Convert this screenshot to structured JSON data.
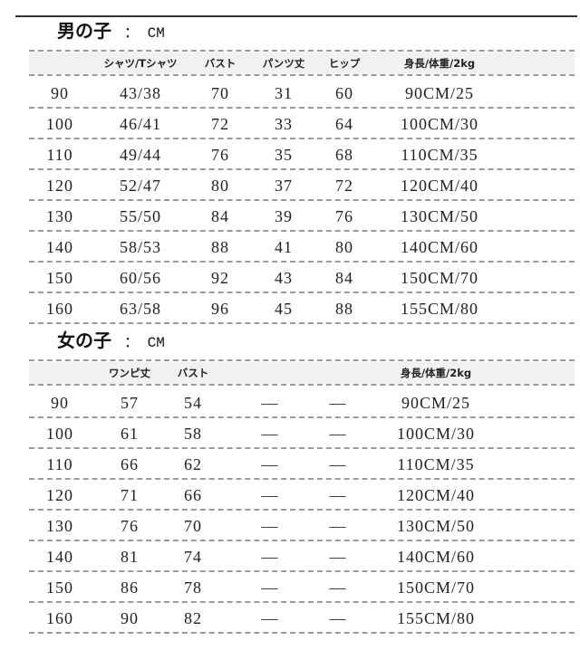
{
  "boys": {
    "title": "男の子",
    "unit": "：  CM",
    "headers": [
      "",
      "シャツ/Tシャツ",
      "バスト",
      "パンツ丈",
      "ヒップ",
      "身長/体重/2kg"
    ],
    "rows": [
      [
        "90",
        "43/38",
        "70",
        "31",
        "60",
        "90CM/25"
      ],
      [
        "100",
        "46/41",
        "72",
        "33",
        "64",
        "100CM/30"
      ],
      [
        "110",
        "49/44",
        "76",
        "35",
        "68",
        "110CM/35"
      ],
      [
        "120",
        "52/47",
        "80",
        "37",
        "72",
        "120CM/40"
      ],
      [
        "130",
        "55/50",
        "84",
        "39",
        "76",
        "130CM/50"
      ],
      [
        "140",
        "58/53",
        "88",
        "41",
        "80",
        "140CM/60"
      ],
      [
        "150",
        "60/56",
        "92",
        "43",
        "84",
        "150CM/70"
      ],
      [
        "160",
        "63/58",
        "96",
        "45",
        "88",
        "155CM/80"
      ]
    ]
  },
  "girls": {
    "title": "女の子",
    "unit": "：  CM",
    "headers": [
      "",
      "ワンピ丈",
      "バスト",
      "",
      "",
      "身長/体重/2kg"
    ],
    "rows": [
      [
        "90",
        "57",
        "54",
        "—",
        "—",
        "90CM/25"
      ],
      [
        "100",
        "61",
        "58",
        "—",
        "—",
        "100CM/30"
      ],
      [
        "110",
        "66",
        "62",
        "—",
        "—",
        "110CM/35"
      ],
      [
        "120",
        "71",
        "66",
        "—",
        "—",
        "120CM/40"
      ],
      [
        "130",
        "76",
        "70",
        "—",
        "—",
        "130CM/50"
      ],
      [
        "140",
        "81",
        "74",
        "—",
        "—",
        "140CM/60"
      ],
      [
        "150",
        "86",
        "78",
        "—",
        "—",
        "150CM/70"
      ],
      [
        "160",
        "90",
        "82",
        "—",
        "—",
        "155CM/80"
      ]
    ]
  }
}
